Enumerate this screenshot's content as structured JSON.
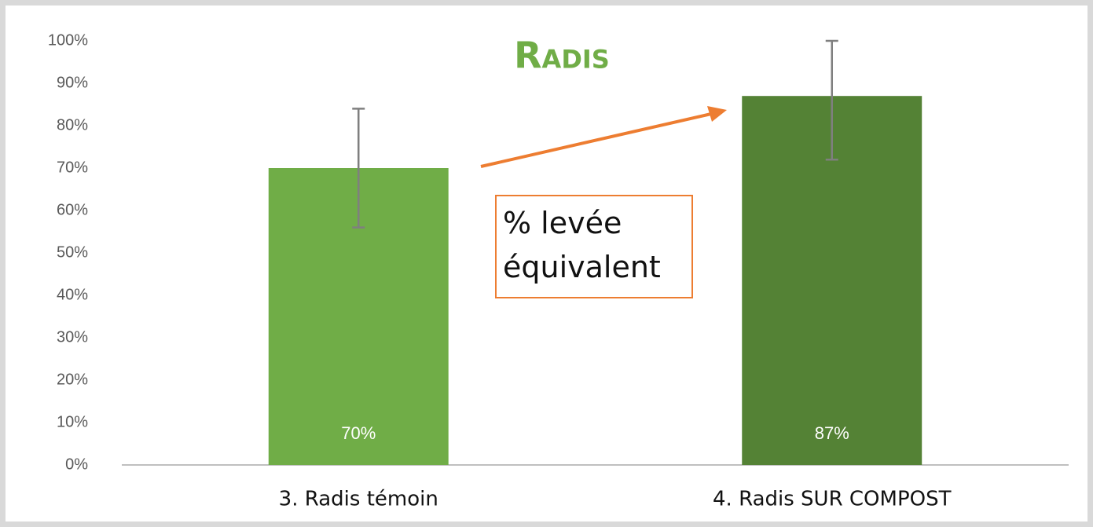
{
  "chart_data": {
    "type": "bar",
    "title": "Radis",
    "categories": [
      "3. Radis témoin",
      "4. Radis SUR COMPOST"
    ],
    "values": [
      70,
      87
    ],
    "value_labels": [
      "70%",
      "87%"
    ],
    "error_minus": [
      14,
      15
    ],
    "error_plus": [
      14,
      13
    ],
    "colors": [
      "#70ad47",
      "#548235"
    ],
    "ylim": [
      0,
      100
    ],
    "yticks": [
      {
        "value": 0,
        "label": "0%"
      },
      {
        "value": 10,
        "label": "10%"
      },
      {
        "value": 20,
        "label": "20%"
      },
      {
        "value": 30,
        "label": "30%"
      },
      {
        "value": 40,
        "label": "40%"
      },
      {
        "value": 50,
        "label": "50%"
      },
      {
        "value": 60,
        "label": "60%"
      },
      {
        "value": 70,
        "label": "70%"
      },
      {
        "value": 80,
        "label": "80%"
      },
      {
        "value": 90,
        "label": "90%"
      },
      {
        "value": 100,
        "label": "100%"
      }
    ],
    "annotation": "% levée équivalent"
  }
}
